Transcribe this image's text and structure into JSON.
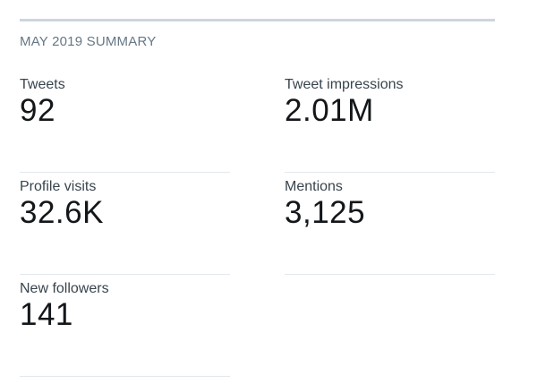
{
  "header": {
    "title": "MAY 2019 SUMMARY"
  },
  "stats": [
    {
      "label": "Tweets",
      "value": "92"
    },
    {
      "label": "Tweet impressions",
      "value": "2.01M"
    },
    {
      "label": "Profile visits",
      "value": "32.6K"
    },
    {
      "label": "Mentions",
      "value": "3,125"
    },
    {
      "label": "New followers",
      "value": "141"
    }
  ]
}
